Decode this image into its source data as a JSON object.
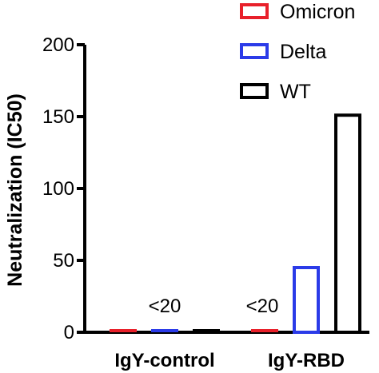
{
  "chart_data": {
    "type": "bar",
    "categories": [
      "IgY-control",
      "IgY-RBD"
    ],
    "series": [
      {
        "name": "Omicron",
        "color": "#e8202a",
        "values": [
          0,
          0
        ]
      },
      {
        "name": "Delta",
        "color": "#2b3be8",
        "values": [
          0,
          45
        ]
      },
      {
        "name": "WT",
        "color": "#000000",
        "values": [
          0,
          151
        ]
      }
    ],
    "ylabel": "Neutralization (IC50)",
    "ylim": [
      0,
      200
    ],
    "yticks": [
      0,
      50,
      100,
      150,
      200
    ],
    "annotations": [
      "<20",
      "<20"
    ],
    "legend_position": "top-right",
    "grid": false
  }
}
